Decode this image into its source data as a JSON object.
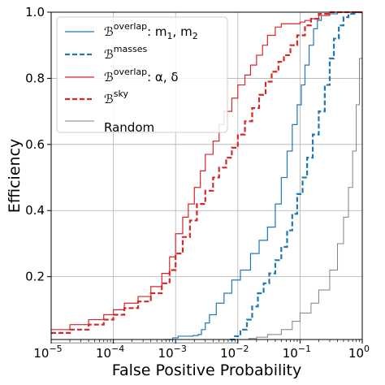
{
  "chart_data": {
    "type": "line",
    "xscale": "log",
    "xlim": [
      1e-05,
      1
    ],
    "ylim": [
      0.01,
      1.0
    ],
    "grid": true,
    "legend_position": "top-left",
    "xlabel": "False Positive Probability",
    "ylabel": "Efficiency",
    "x_ticks": [
      {
        "value": 1e-05,
        "base": "10",
        "exp": "−5"
      },
      {
        "value": 0.0001,
        "base": "10",
        "exp": "−4"
      },
      {
        "value": 0.001,
        "base": "10",
        "exp": "−3"
      },
      {
        "value": 0.01,
        "base": "10",
        "exp": "−2"
      },
      {
        "value": 0.1,
        "base": "10",
        "exp": "−1"
      },
      {
        "value": 1,
        "base": "10",
        "exp": "0"
      }
    ],
    "y_ticks": [
      {
        "value": 0.2,
        "label": "0.2"
      },
      {
        "value": 0.4,
        "label": "0.4"
      },
      {
        "value": 0.6,
        "label": "0.6"
      },
      {
        "value": 0.8,
        "label": "0.8"
      },
      {
        "value": 1.0,
        "label": "1.0"
      }
    ],
    "series": [
      {
        "key": "overlap_m",
        "legend": {
          "sym": "ℬ",
          "sup": "overlap",
          "rest": ": m",
          "sub1": "1",
          "mid": ", m",
          "sub2": "2"
        },
        "color": "#1f77b4",
        "style": "solid",
        "width": 1.2,
        "x": [
          0.00065,
          0.0009,
          0.0011,
          0.0015,
          0.0019,
          0.0023,
          0.0026,
          0.003,
          0.0035,
          0.0045,
          0.006,
          0.008,
          0.011,
          0.016,
          0.022,
          0.03,
          0.04,
          0.05,
          0.062,
          0.075,
          0.09,
          0.105,
          0.12,
          0.14,
          0.165,
          0.19,
          0.22,
          0.3,
          0.4,
          0.55,
          0.75,
          1.0
        ],
        "y": [
          0.01,
          0.015,
          0.02,
          0.02,
          0.022,
          0.025,
          0.04,
          0.06,
          0.085,
          0.12,
          0.15,
          0.19,
          0.22,
          0.27,
          0.31,
          0.35,
          0.42,
          0.5,
          0.58,
          0.66,
          0.72,
          0.78,
          0.84,
          0.9,
          0.95,
          0.975,
          0.99,
          0.995,
          1.0,
          1.0,
          1.0,
          1.0
        ]
      },
      {
        "key": "masses",
        "legend": {
          "sym": "ℬ",
          "sup": "masses"
        },
        "color": "#1f77b4",
        "style": "dashed",
        "width": 2.2,
        "x": [
          0.0075,
          0.009,
          0.011,
          0.014,
          0.017,
          0.021,
          0.026,
          0.032,
          0.04,
          0.05,
          0.062,
          0.075,
          0.09,
          0.11,
          0.13,
          0.16,
          0.2,
          0.25,
          0.3,
          0.35,
          0.42,
          0.5,
          0.6,
          0.75,
          1.0
        ],
        "y": [
          0.01,
          0.02,
          0.04,
          0.07,
          0.11,
          0.15,
          0.18,
          0.21,
          0.25,
          0.29,
          0.34,
          0.39,
          0.45,
          0.5,
          0.56,
          0.63,
          0.7,
          0.78,
          0.86,
          0.92,
          0.96,
          0.985,
          0.995,
          1.0,
          1.0
        ]
      },
      {
        "key": "overlap_ad",
        "legend": {
          "sym": "ℬ",
          "sup": "overlap",
          "rest": ": α, δ"
        },
        "color": "#d62728",
        "style": "solid",
        "width": 1.2,
        "x": [
          1e-05,
          2e-05,
          4e-05,
          7e-05,
          0.0001,
          0.00015,
          0.00025,
          0.0004,
          0.0006,
          0.0008,
          0.001,
          0.0013,
          0.0016,
          0.002,
          0.0025,
          0.003,
          0.004,
          0.005,
          0.006,
          0.008,
          0.01,
          0.013,
          0.016,
          0.02,
          0.025,
          0.03,
          0.04,
          0.05,
          0.06,
          0.07,
          0.08,
          0.1,
          0.12,
          0.15,
          0.2,
          0.3,
          0.45,
          0.7,
          1.0
        ],
        "y": [
          0.04,
          0.055,
          0.07,
          0.085,
          0.1,
          0.12,
          0.14,
          0.17,
          0.21,
          0.26,
          0.33,
          0.38,
          0.42,
          0.47,
          0.52,
          0.57,
          0.61,
          0.66,
          0.7,
          0.74,
          0.78,
          0.81,
          0.84,
          0.87,
          0.9,
          0.93,
          0.955,
          0.965,
          0.965,
          0.965,
          0.965,
          0.97,
          0.975,
          0.98,
          0.99,
          1.0,
          1.0,
          1.0,
          1.0
        ]
      },
      {
        "key": "sky",
        "legend": {
          "sym": "ℬ",
          "sup": "sky"
        },
        "color": "#d62728",
        "style": "dashed",
        "width": 2.2,
        "x": [
          1e-05,
          2e-05,
          4e-05,
          7e-05,
          0.0001,
          0.00015,
          0.00025,
          0.0004,
          0.0006,
          0.0008,
          0.001,
          0.0013,
          0.0017,
          0.0022,
          0.003,
          0.004,
          0.005,
          0.0065,
          0.008,
          0.01,
          0.013,
          0.017,
          0.022,
          0.028,
          0.035,
          0.045,
          0.055,
          0.07,
          0.09,
          0.12,
          0.15,
          0.2,
          0.3,
          0.5,
          1.0
        ],
        "y": [
          0.03,
          0.04,
          0.055,
          0.07,
          0.085,
          0.105,
          0.125,
          0.15,
          0.18,
          0.22,
          0.27,
          0.32,
          0.37,
          0.42,
          0.46,
          0.5,
          0.53,
          0.56,
          0.59,
          0.63,
          0.67,
          0.71,
          0.75,
          0.79,
          0.82,
          0.85,
          0.87,
          0.9,
          0.93,
          0.96,
          0.98,
          0.995,
          1.0,
          1.0,
          1.0
        ]
      },
      {
        "key": "random",
        "legend": {
          "sym": "",
          "sup": "",
          "rest": "Random"
        },
        "color": "#808080",
        "style": "solid",
        "width": 1.0,
        "x": [
          1e-05,
          0.001,
          0.003,
          0.006,
          0.01,
          0.015,
          0.02,
          0.03,
          0.05,
          0.075,
          0.1,
          0.15,
          0.2,
          0.3,
          0.4,
          0.5,
          0.6,
          0.7,
          0.8,
          0.9,
          1.0
        ],
        "y": [
          0.0,
          0.0,
          0.0,
          0.0,
          0.01,
          0.013,
          0.017,
          0.025,
          0.04,
          0.065,
          0.09,
          0.12,
          0.16,
          0.22,
          0.3,
          0.38,
          0.47,
          0.58,
          0.72,
          0.86,
          1.0
        ]
      }
    ]
  }
}
